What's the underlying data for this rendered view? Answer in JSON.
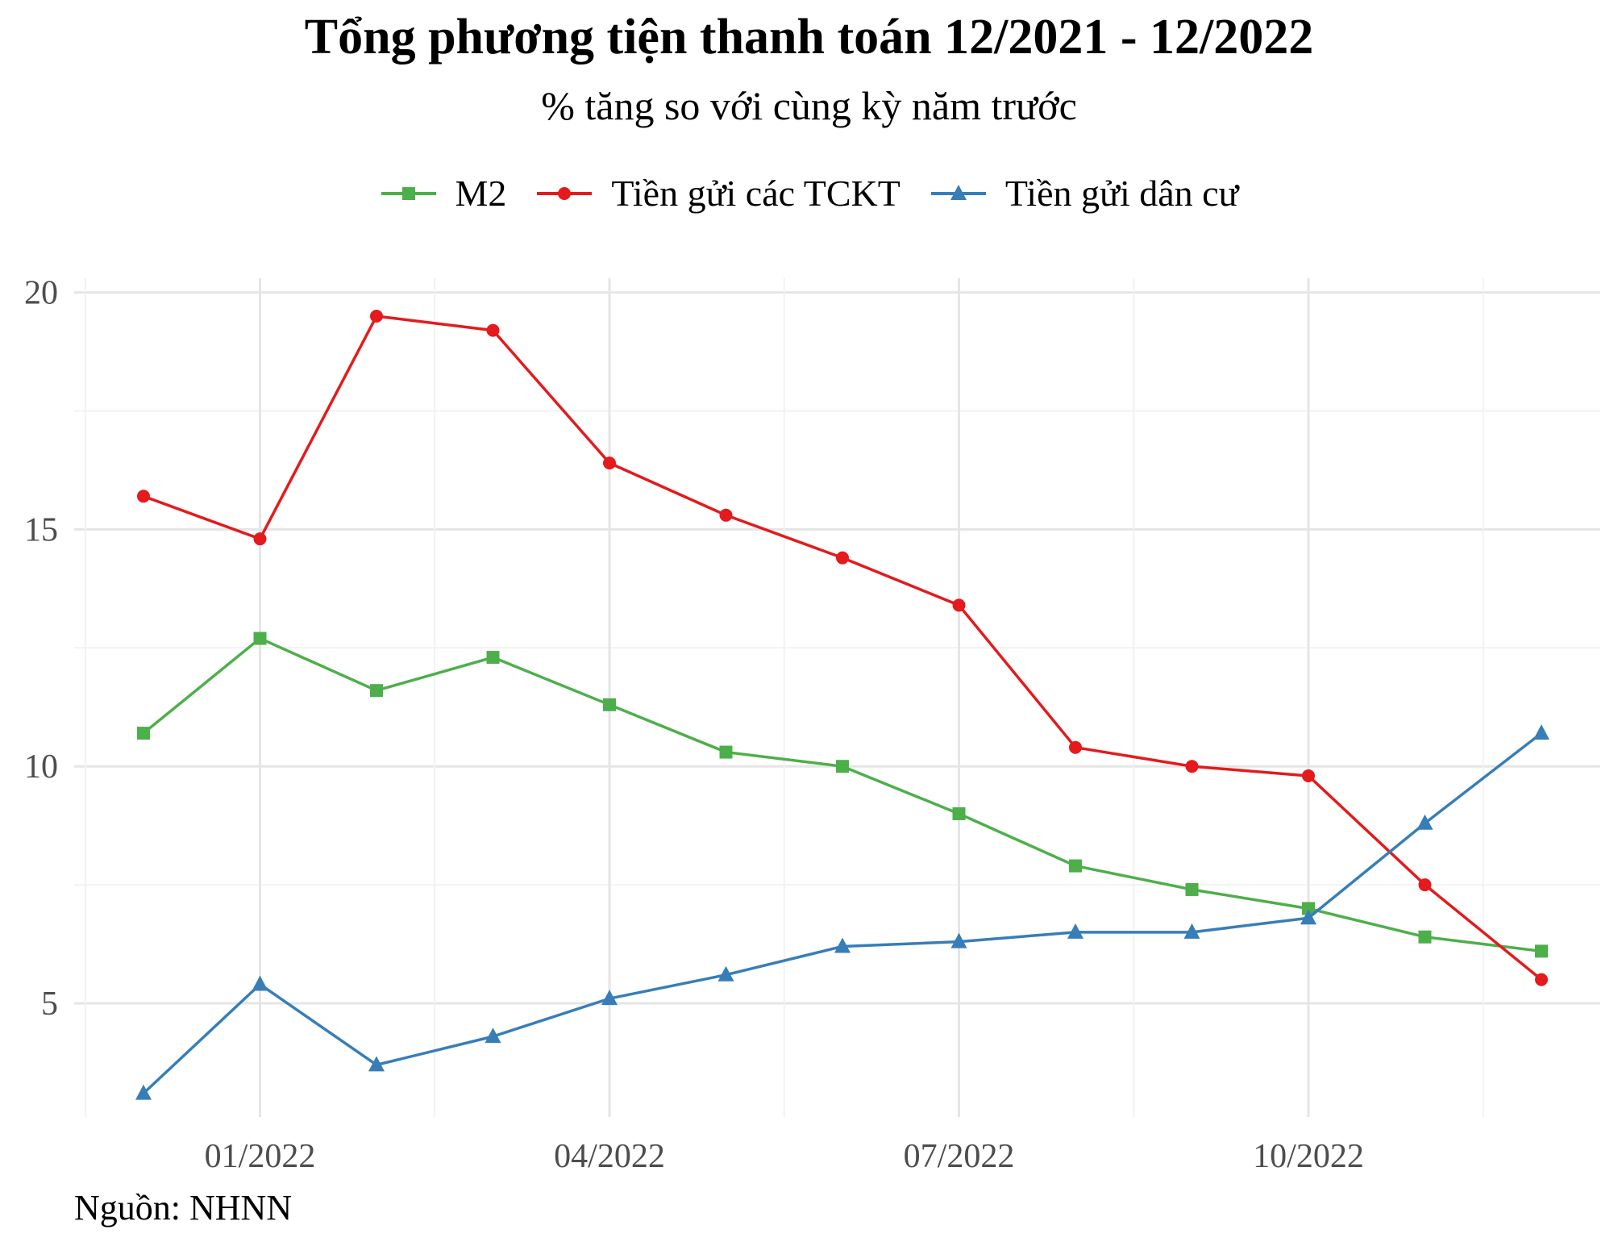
{
  "chart_data": {
    "type": "line",
    "title": "Tổng phương tiện thanh toán 12/2021 - 12/2022",
    "subtitle": "% tăng so với cùng kỳ năm trước",
    "xlabel": "",
    "ylabel": "",
    "source": "Nguồn: NHNN",
    "x": [
      "12/2021",
      "01/2022",
      "02/2022",
      "03/2022",
      "04/2022",
      "05/2022",
      "06/2022",
      "07/2022",
      "08/2022",
      "09/2022",
      "10/2022",
      "11/2022",
      "12/2022"
    ],
    "x_ticks": [
      "01/2022",
      "04/2022",
      "07/2022",
      "10/2022"
    ],
    "y_ticks": [
      5,
      10,
      15,
      20
    ],
    "ylim": [
      2.6,
      20.3
    ],
    "grid": true,
    "legend_position": "top",
    "series": [
      {
        "name": "M2",
        "color": "#4daf4a",
        "marker": "square",
        "values": [
          10.7,
          12.7,
          11.6,
          12.3,
          11.3,
          10.3,
          10.0,
          9.0,
          7.9,
          7.4,
          7.0,
          6.4,
          6.1
        ]
      },
      {
        "name": "Tiền gửi các TCKT",
        "color": "#e41a1c",
        "marker": "circle",
        "values": [
          15.7,
          14.8,
          19.5,
          19.2,
          16.4,
          15.3,
          14.4,
          13.4,
          10.4,
          10.0,
          9.8,
          7.5,
          5.5
        ]
      },
      {
        "name": "Tiền gửi dân cư",
        "color": "#377eb8",
        "marker": "triangle",
        "values": [
          3.1,
          5.4,
          3.7,
          4.3,
          5.1,
          5.6,
          6.2,
          6.3,
          6.5,
          6.5,
          6.8,
          8.8,
          10.7
        ]
      }
    ]
  }
}
